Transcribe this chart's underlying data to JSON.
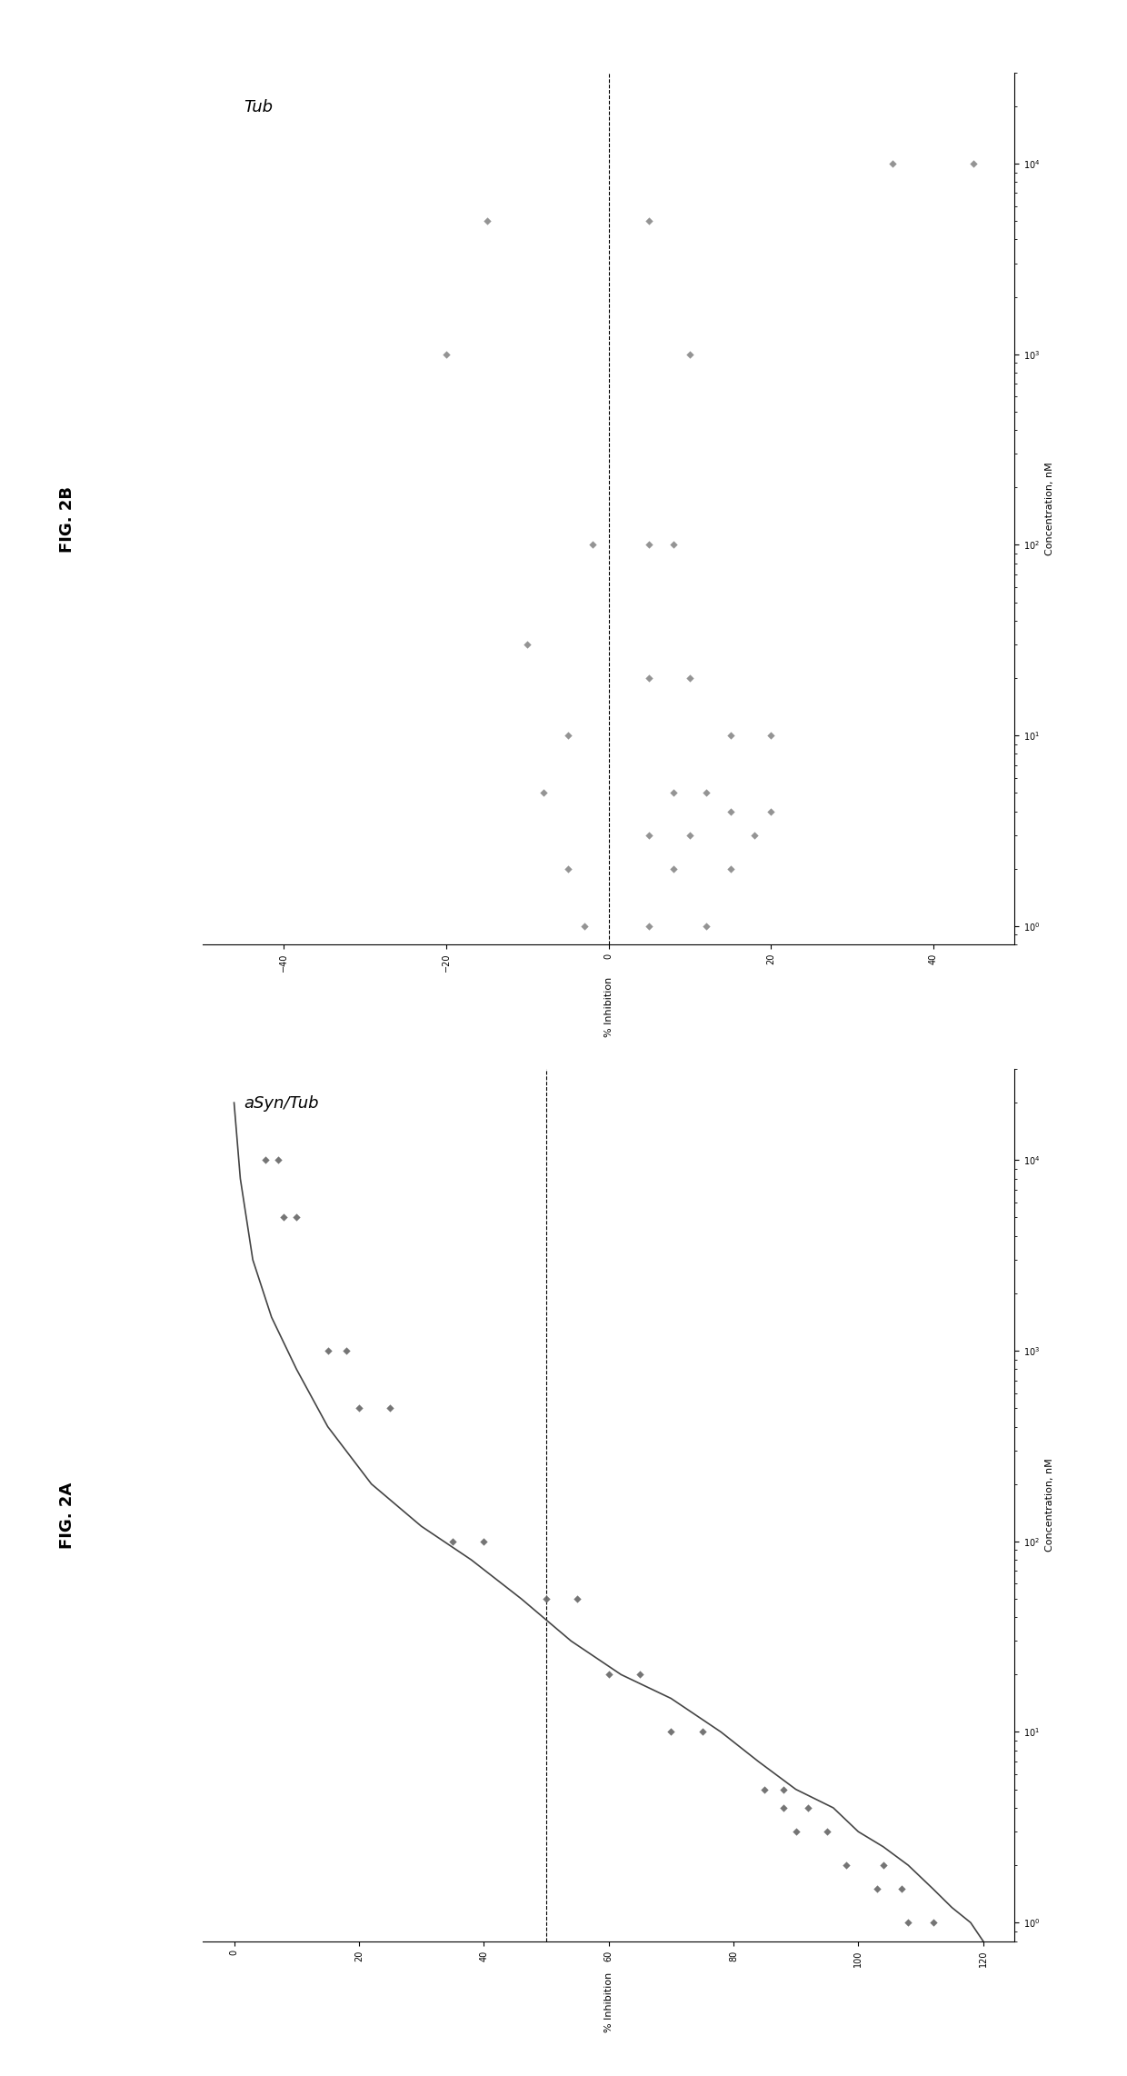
{
  "fig2a": {
    "title": "aSyn/Tub",
    "xlabel": "% Inhibition",
    "ylabel": "Concentration, nM",
    "xlim": [
      -5,
      125
    ],
    "ylim": [
      0.8,
      30000
    ],
    "xticks": [
      0,
      20,
      40,
      60,
      80,
      100,
      120
    ],
    "hline_x": 50,
    "scatter_y": [
      1,
      1,
      1.5,
      1.5,
      2,
      2,
      3,
      3,
      4,
      4,
      5,
      5,
      10,
      10,
      20,
      20,
      50,
      50,
      100,
      100,
      500,
      500,
      1000,
      1000,
      5000,
      5000,
      10000,
      10000
    ],
    "scatter_x": [
      108,
      112,
      103,
      107,
      98,
      104,
      90,
      95,
      88,
      92,
      85,
      88,
      70,
      75,
      60,
      65,
      50,
      55,
      35,
      40,
      20,
      25,
      15,
      18,
      8,
      10,
      5,
      7
    ],
    "curve_x": [
      120,
      118,
      115,
      112,
      108,
      104,
      100,
      96,
      90,
      84,
      78,
      70,
      62,
      54,
      46,
      38,
      30,
      22,
      15,
      10,
      6,
      3,
      1,
      0
    ],
    "curve_y": [
      0.8,
      1,
      1.2,
      1.5,
      2,
      2.5,
      3,
      4,
      5,
      7,
      10,
      15,
      20,
      30,
      50,
      80,
      120,
      200,
      400,
      800,
      1500,
      3000,
      8000,
      20000
    ],
    "marker_color": "#666666",
    "line_color": "#444444"
  },
  "fig2b": {
    "title": "Tub",
    "xlabel": "% Inhibition",
    "ylabel": "Concentration, nM",
    "xlim": [
      -50,
      50
    ],
    "ylim": [
      0.8,
      30000
    ],
    "xticks": [
      -40,
      -20,
      0,
      20,
      40
    ],
    "hline_x": 0,
    "scatter_y": [
      1,
      1,
      1,
      2,
      2,
      2,
      3,
      3,
      3,
      4,
      4,
      5,
      5,
      5,
      10,
      10,
      10,
      20,
      20,
      30,
      100,
      100,
      100,
      1000,
      1000,
      5000,
      5000,
      10000,
      10000
    ],
    "scatter_x": [
      5,
      12,
      -3,
      15,
      8,
      -5,
      18,
      10,
      5,
      20,
      15,
      12,
      8,
      -8,
      20,
      15,
      -5,
      10,
      5,
      -10,
      5,
      -2,
      8,
      -20,
      10,
      5,
      -15,
      35,
      45
    ],
    "marker_color": "#888888"
  },
  "fig_label_a": "FIG. 2A",
  "fig_label_b": "FIG. 2B",
  "background_color": "#ffffff"
}
